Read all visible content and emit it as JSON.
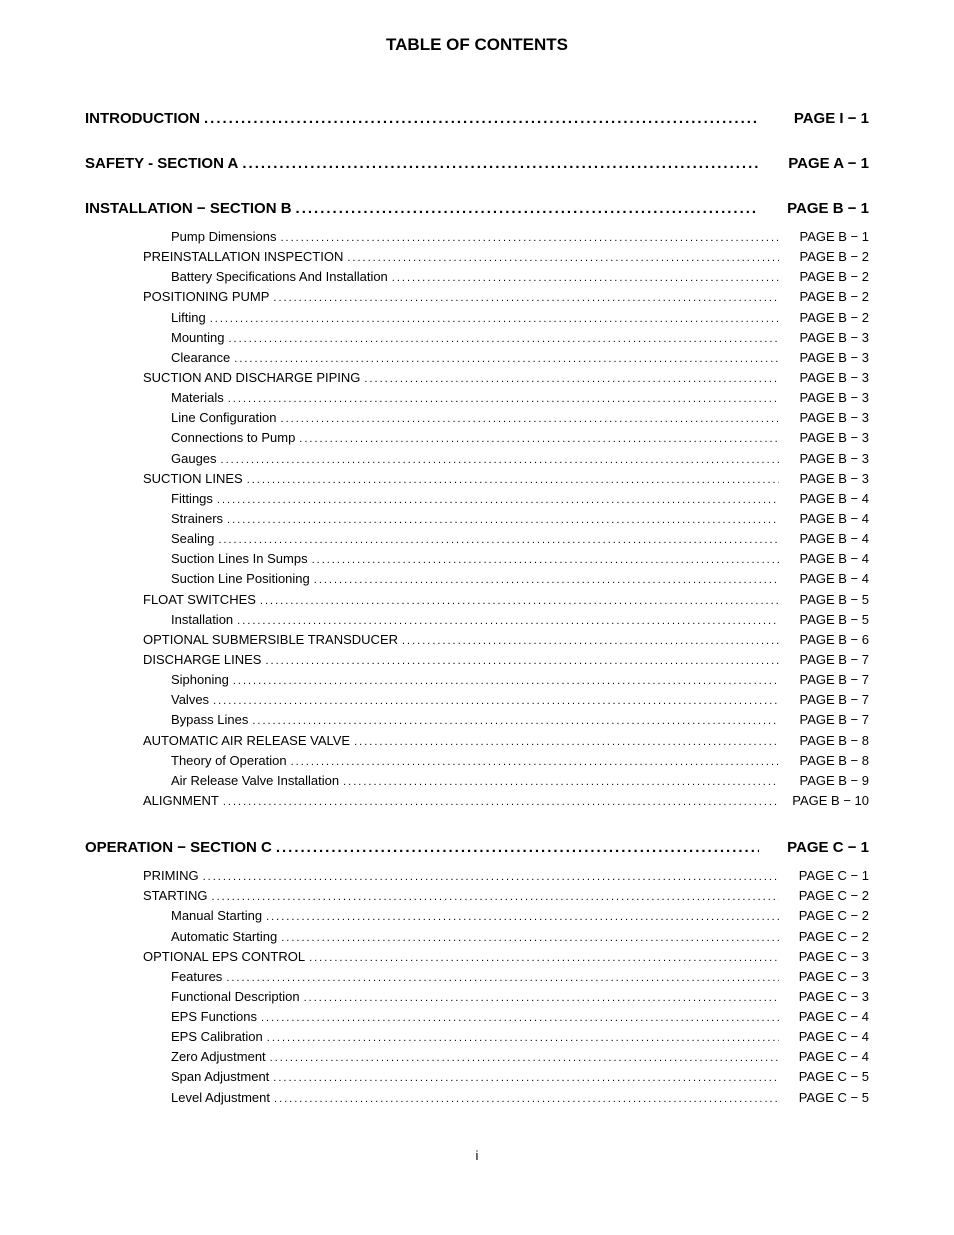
{
  "title": "TABLE OF CONTENTS",
  "page_number": "i",
  "dots": "..................................................................................................................................",
  "sections": [
    {
      "label": "INTRODUCTION",
      "page": "PAGE I − 1",
      "entries": []
    },
    {
      "label": "SAFETY - SECTION A",
      "page": "PAGE A − 1",
      "entries": []
    },
    {
      "label": "INSTALLATION − SECTION B",
      "page": "PAGE B − 1",
      "entries": [
        {
          "level": 2,
          "label": "Pump Dimensions",
          "page": "PAGE B − 1"
        },
        {
          "level": 1,
          "label": "PREINSTALLATION INSPECTION",
          "page": "PAGE B − 2"
        },
        {
          "level": 2,
          "label": "Battery Specifications And Installation",
          "page": "PAGE B − 2"
        },
        {
          "level": 1,
          "label": "POSITIONING PUMP",
          "page": "PAGE B − 2"
        },
        {
          "level": 2,
          "label": "Lifting",
          "page": "PAGE B − 2"
        },
        {
          "level": 2,
          "label": "Mounting",
          "page": "PAGE B − 3"
        },
        {
          "level": 2,
          "label": "Clearance",
          "page": "PAGE B − 3"
        },
        {
          "level": 1,
          "label": "SUCTION AND DISCHARGE PIPING",
          "page": "PAGE B − 3"
        },
        {
          "level": 2,
          "label": "Materials",
          "page": "PAGE B − 3"
        },
        {
          "level": 2,
          "label": "Line Configuration",
          "page": "PAGE B − 3"
        },
        {
          "level": 2,
          "label": "Connections to Pump",
          "page": "PAGE B − 3"
        },
        {
          "level": 2,
          "label": "Gauges",
          "page": "PAGE B − 3"
        },
        {
          "level": 1,
          "label": "SUCTION LINES",
          "page": "PAGE B − 3"
        },
        {
          "level": 2,
          "label": "Fittings",
          "page": "PAGE B − 4"
        },
        {
          "level": 2,
          "label": "Strainers",
          "page": "PAGE B − 4"
        },
        {
          "level": 2,
          "label": "Sealing",
          "page": "PAGE B − 4"
        },
        {
          "level": 2,
          "label": "Suction Lines In Sumps",
          "page": "PAGE B − 4"
        },
        {
          "level": 2,
          "label": "Suction Line Positioning",
          "page": "PAGE B − 4"
        },
        {
          "level": 1,
          "label": "FLOAT SWITCHES",
          "page": "PAGE B − 5"
        },
        {
          "level": 2,
          "label": "Installation",
          "page": "PAGE B − 5"
        },
        {
          "level": 1,
          "label": "OPTIONAL SUBMERSIBLE TRANSDUCER",
          "page": "PAGE B − 6"
        },
        {
          "level": 1,
          "label": "DISCHARGE LINES",
          "page": "PAGE B − 7"
        },
        {
          "level": 2,
          "label": "Siphoning",
          "page": "PAGE B − 7"
        },
        {
          "level": 2,
          "label": "Valves",
          "page": "PAGE B − 7"
        },
        {
          "level": 2,
          "label": "Bypass Lines",
          "page": "PAGE B − 7"
        },
        {
          "level": 1,
          "label": "AUTOMATIC AIR RELEASE VALVE",
          "page": "PAGE B − 8"
        },
        {
          "level": 2,
          "label": "Theory of Operation",
          "page": "PAGE B − 8"
        },
        {
          "level": 2,
          "label": "Air Release Valve Installation",
          "page": "PAGE B − 9"
        },
        {
          "level": 1,
          "label": "ALIGNMENT",
          "page": "PAGE B − 10"
        }
      ]
    },
    {
      "label": "OPERATION − SECTION C",
      "page": "PAGE C − 1",
      "entries": [
        {
          "level": 1,
          "label": "PRIMING",
          "page": "PAGE C − 1"
        },
        {
          "level": 1,
          "label": "STARTING",
          "page": "PAGE C − 2"
        },
        {
          "level": 2,
          "label": "Manual Starting",
          "page": "PAGE C − 2"
        },
        {
          "level": 2,
          "label": "Automatic Starting",
          "page": "PAGE C − 2"
        },
        {
          "level": 1,
          "label": "OPTIONAL EPS CONTROL",
          "page": "PAGE C − 3"
        },
        {
          "level": 2,
          "label": "Features",
          "page": "PAGE C − 3"
        },
        {
          "level": 2,
          "label": "Functional Description",
          "page": "PAGE C − 3"
        },
        {
          "level": 2,
          "label": "EPS Functions",
          "page": "PAGE C − 4"
        },
        {
          "level": 2,
          "label": "EPS Calibration",
          "page": "PAGE C − 4"
        },
        {
          "level": 2,
          "label": "Zero Adjustment",
          "page": "PAGE C − 4"
        },
        {
          "level": 2,
          "label": "Span Adjustment",
          "page": "PAGE C − 5"
        },
        {
          "level": 2,
          "label": "Level Adjustment",
          "page": "PAGE C − 5"
        }
      ]
    }
  ]
}
